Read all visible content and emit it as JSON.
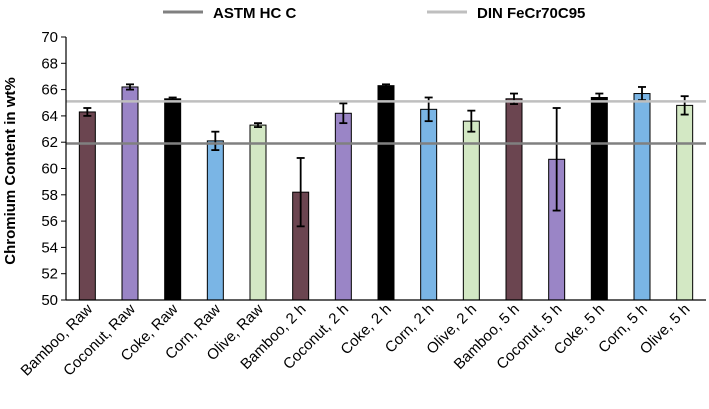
{
  "chart_data": {
    "type": "bar",
    "title": "",
    "xlabel": "",
    "ylabel": "Chromium Content in wt%",
    "ylim": [
      50,
      70
    ],
    "ytick_step": 2,
    "grid": false,
    "legend_position": "top",
    "categories": [
      "Bamboo, Raw",
      "Coconut, Raw",
      "Coke, Raw",
      "Corn, Raw",
      "Olive, Raw",
      "Bamboo, 2 h",
      "Coconut, 2 h",
      "Coke, 2 h",
      "Corn, 2 h",
      "Olive, 2 h",
      "Bamboo, 5 h",
      "Coconut, 5 h",
      "Coke, 5 h",
      "Corn, 5 h",
      "Olive, 5 h"
    ],
    "values": [
      64.3,
      66.2,
      65.3,
      62.1,
      63.3,
      58.2,
      64.2,
      66.3,
      64.5,
      63.6,
      65.3,
      60.7,
      65.4,
      65.7,
      64.8
    ],
    "errors": [
      0.3,
      0.2,
      0.1,
      0.7,
      0.15,
      2.6,
      0.75,
      0.1,
      0.9,
      0.8,
      0.4,
      3.9,
      0.3,
      0.5,
      0.7
    ],
    "material_colors": {
      "Bamboo": "#6b4550",
      "Coconut": "#9a85c6",
      "Coke": "#000000",
      "Corn": "#7ab5e5",
      "Olive": "#d3e8c4"
    },
    "reference_lines": [
      {
        "name": "ASTM HC C",
        "value": 61.9,
        "color": "#808080"
      },
      {
        "name": "DIN FeCr70C95",
        "value": 65.1,
        "color": "#bfbfbf"
      }
    ]
  }
}
